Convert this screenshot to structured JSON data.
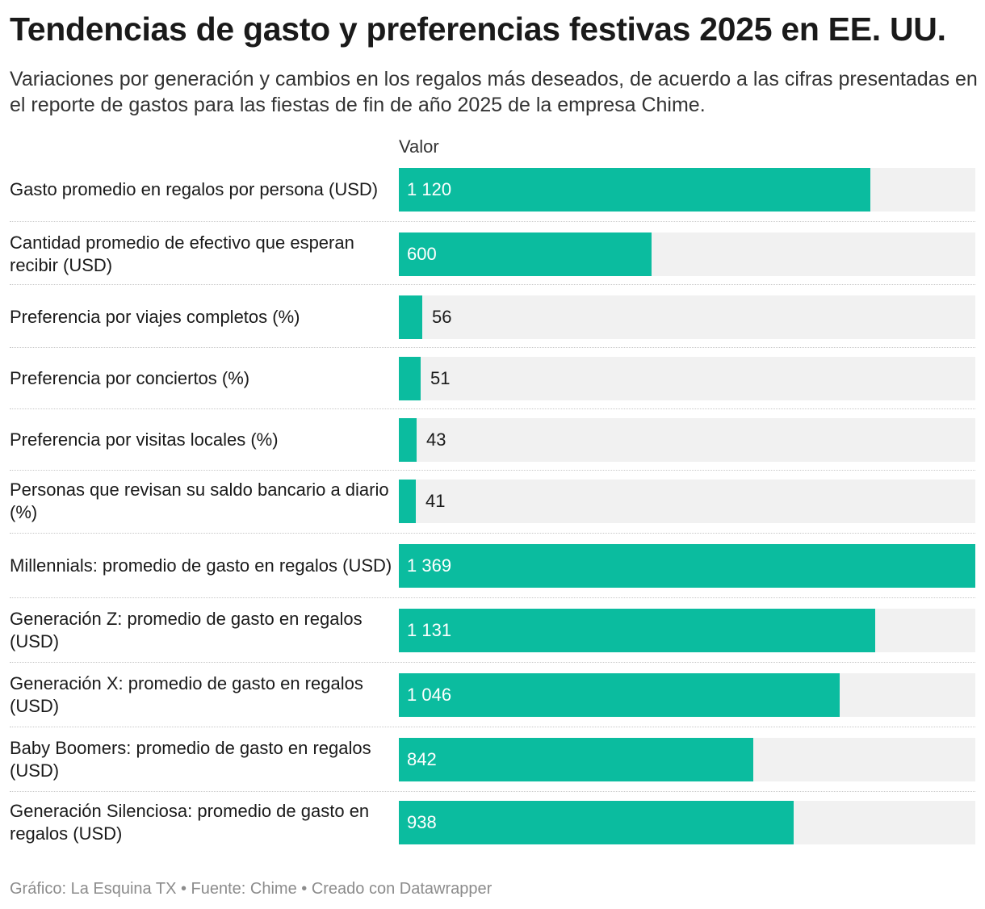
{
  "header": {
    "title": "Tendencias de gasto y preferencias festivas 2025 en EE. UU.",
    "subtitle": "Variaciones por generación y cambios en los regalos más deseados, de acuerdo a las cifras presentadas en el reporte de gastos para las fiestas de fin de año 2025 de la empresa Chime."
  },
  "footer": {
    "credit": "Gráfico: La Esquina TX",
    "separator1": " • ",
    "source": "Fuente: Chime",
    "separator2": " • ",
    "tool": "Creado con Datawrapper"
  },
  "colors": {
    "bar": "#0bbc9f",
    "track": "#f1f1f1",
    "value_inside": "#ffffff",
    "value_outside": "#1a1a1a"
  },
  "chart_data": {
    "type": "bar",
    "orientation": "horizontal",
    "value_column_label": "Valor",
    "xlim": [
      0,
      1369
    ],
    "categories": [
      "Gasto promedio en regalos por persona (USD)",
      "Cantidad promedio de efectivo que esperan recibir (USD)",
      "Preferencia por viajes completos (%)",
      "Preferencia por conciertos (%)",
      "Preferencia por visitas locales (%)",
      "Personas que revisan su saldo bancario a diario (%)",
      "Millennials: promedio de gasto en regalos (USD)",
      "Generación Z: promedio de gasto en regalos (USD)",
      "Generación X: promedio de gasto en regalos (USD)",
      "Baby Boomers: promedio de gasto en regalos (USD)",
      "Generación Silenciosa: promedio de gasto en regalos (USD)"
    ],
    "values": [
      1120,
      600,
      56,
      51,
      43,
      41,
      1369,
      1131,
      1046,
      842,
      938
    ],
    "value_labels": [
      "1 120",
      "600",
      "56",
      "51",
      "43",
      "41",
      "1 369",
      "1 131",
      "1 046",
      "842",
      "938"
    ]
  }
}
